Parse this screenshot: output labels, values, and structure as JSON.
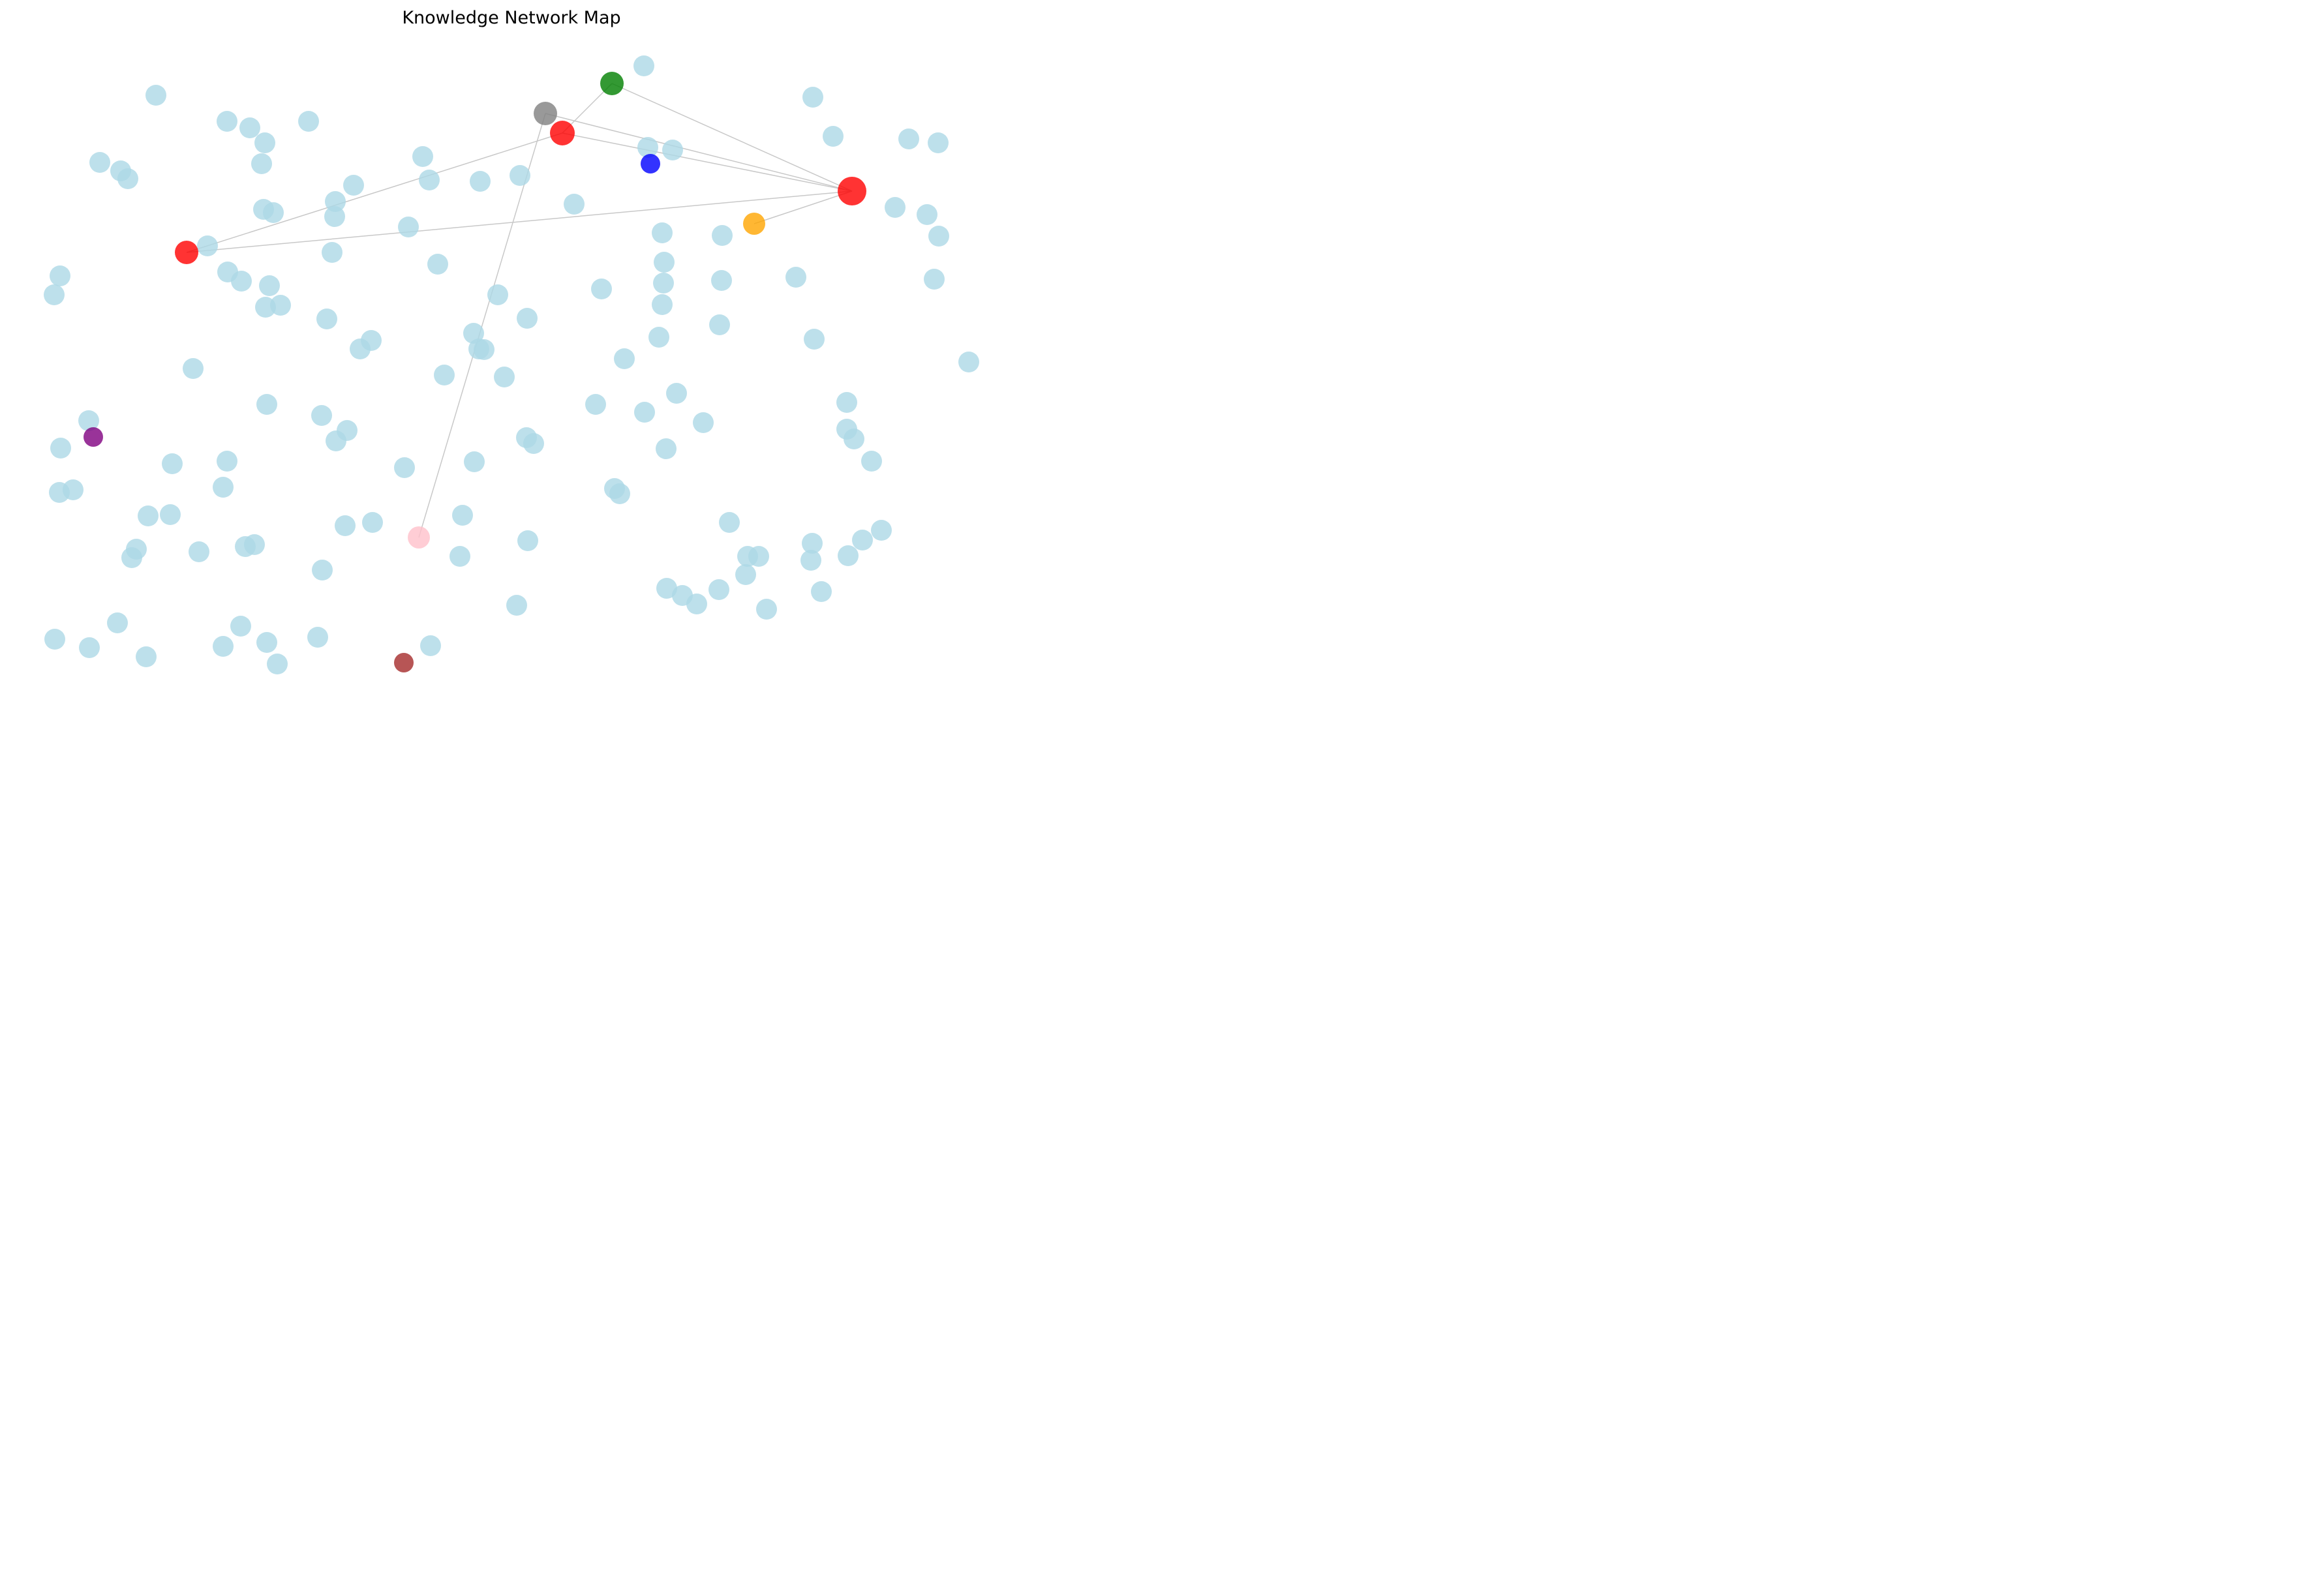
{
  "title": "Knowledge Network Map",
  "colors": {
    "default_node": "#add8e6",
    "edge": "#c8c8c8",
    "red": "#ff0000",
    "green": "#008000",
    "gray": "#808080",
    "blue": "#0000ff",
    "orange": "#ffa500",
    "purple": "#800080",
    "pink": "#ffc0cb",
    "brown": "#a52a2a"
  },
  "highlight_nodes": [
    {
      "id": "hub-right",
      "color": "red"
    },
    {
      "id": "red-top",
      "color": "red"
    },
    {
      "id": "red-left",
      "color": "red"
    },
    {
      "id": "green",
      "color": "green"
    },
    {
      "id": "gray",
      "color": "gray"
    },
    {
      "id": "blue",
      "color": "blue"
    },
    {
      "id": "orange",
      "color": "orange"
    },
    {
      "id": "purple",
      "color": "purple"
    },
    {
      "id": "pink",
      "color": "pink"
    },
    {
      "id": "brown",
      "color": "brown"
    }
  ],
  "edges": [
    [
      "hub-right",
      "red-top"
    ],
    [
      "hub-right",
      "red-left"
    ],
    [
      "hub-right",
      "gray"
    ],
    [
      "hub-right",
      "green"
    ],
    [
      "hub-right",
      "orange"
    ],
    [
      "red-top",
      "red-left"
    ],
    [
      "red-top",
      "green"
    ],
    [
      "gray",
      "pink"
    ]
  ],
  "default_node_count": 130
}
